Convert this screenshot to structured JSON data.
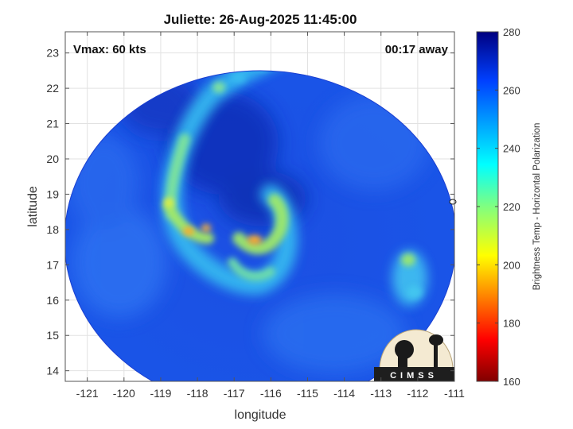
{
  "title": "Juliette: 26-Aug-2025 11:45:00",
  "vmax_label": "Vmax: 60 kts",
  "time_label": "00:17 away",
  "x_axis": {
    "label": "longitude",
    "ticks": [
      -121,
      -120,
      -119,
      -118,
      -117,
      -116,
      -115,
      -114,
      -113,
      -112,
      -111
    ],
    "tick_labels": [
      "-121",
      "-120",
      "-119",
      "-118",
      "-117",
      "-116",
      "-115",
      "-114",
      "-113",
      "-112",
      "-111"
    ],
    "range": [
      -121.6,
      -111
    ]
  },
  "y_axis": {
    "label": "latitude",
    "ticks": [
      14,
      15,
      16,
      17,
      18,
      19,
      20,
      21,
      22,
      23
    ],
    "tick_labels": [
      "14",
      "15",
      "16",
      "17",
      "18",
      "19",
      "20",
      "21",
      "22",
      "23"
    ],
    "range": [
      13.7,
      23.6
    ]
  },
  "colorbar": {
    "label": "Brightness Temp - Horizontal Polarization",
    "ticks": [
      160,
      180,
      200,
      220,
      240,
      260,
      280
    ],
    "tick_labels": [
      "160",
      "180",
      "200",
      "220",
      "240",
      "260",
      "280"
    ],
    "range": [
      160,
      280
    ],
    "colormap": "jet"
  },
  "logo": {
    "text": "CIMSS"
  },
  "colors": {
    "background_tb": "#1a4be0",
    "cold_tb": "#0a1f9e",
    "band_light": "#3fc4f2",
    "band_warm": "#a8e85a",
    "band_hot": "#ffae2a"
  }
}
